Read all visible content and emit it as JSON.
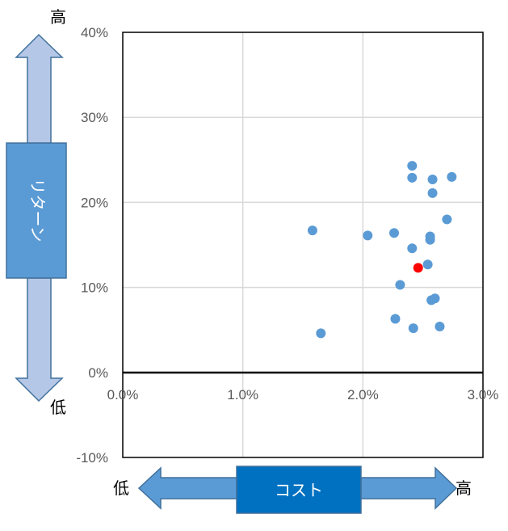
{
  "chart_data": {
    "type": "scatter",
    "xlim": [
      0.0,
      3.0
    ],
    "ylim": [
      -10,
      40
    ],
    "x_ticks": [
      "0.0%",
      "1.0%",
      "2.0%",
      "3.0%"
    ],
    "y_ticks": [
      "40%",
      "30%",
      "20%",
      "10%",
      "0%",
      "-10%"
    ],
    "grid": true,
    "series": [
      {
        "color": "#5b9bd5",
        "points": [
          {
            "x": 1.58,
            "y": 16.7
          },
          {
            "x": 1.65,
            "y": 4.6
          },
          {
            "x": 2.04,
            "y": 16.1
          },
          {
            "x": 2.26,
            "y": 16.4
          },
          {
            "x": 2.27,
            "y": 6.3
          },
          {
            "x": 2.31,
            "y": 10.3
          },
          {
            "x": 2.41,
            "y": 24.3
          },
          {
            "x": 2.41,
            "y": 22.9
          },
          {
            "x": 2.41,
            "y": 14.6
          },
          {
            "x": 2.42,
            "y": 5.2
          },
          {
            "x": 2.54,
            "y": 12.7
          },
          {
            "x": 2.56,
            "y": 16.0
          },
          {
            "x": 2.56,
            "y": 15.6
          },
          {
            "x": 2.57,
            "y": 8.5
          },
          {
            "x": 2.58,
            "y": 22.7
          },
          {
            "x": 2.58,
            "y": 21.1
          },
          {
            "x": 2.6,
            "y": 8.7
          },
          {
            "x": 2.64,
            "y": 5.4
          },
          {
            "x": 2.7,
            "y": 18.0
          },
          {
            "x": 2.74,
            "y": 23.0
          }
        ]
      },
      {
        "color": "#ff0000",
        "points": [
          {
            "x": 2.46,
            "y": 12.3
          }
        ]
      }
    ]
  },
  "axis_words": {
    "return_high": "高",
    "return_low": "低",
    "return_label": "リターン",
    "cost_low": "低",
    "cost_high": "高",
    "cost_label": "コスト"
  },
  "colors": {
    "arrow_light": "#b4c7e7",
    "arrow_border": "#41719c",
    "box_return": "#5b9bd5",
    "box_cost": "#0070c0",
    "arrow_cost": "#5b9bd5",
    "grid": "#d9d9d9"
  }
}
